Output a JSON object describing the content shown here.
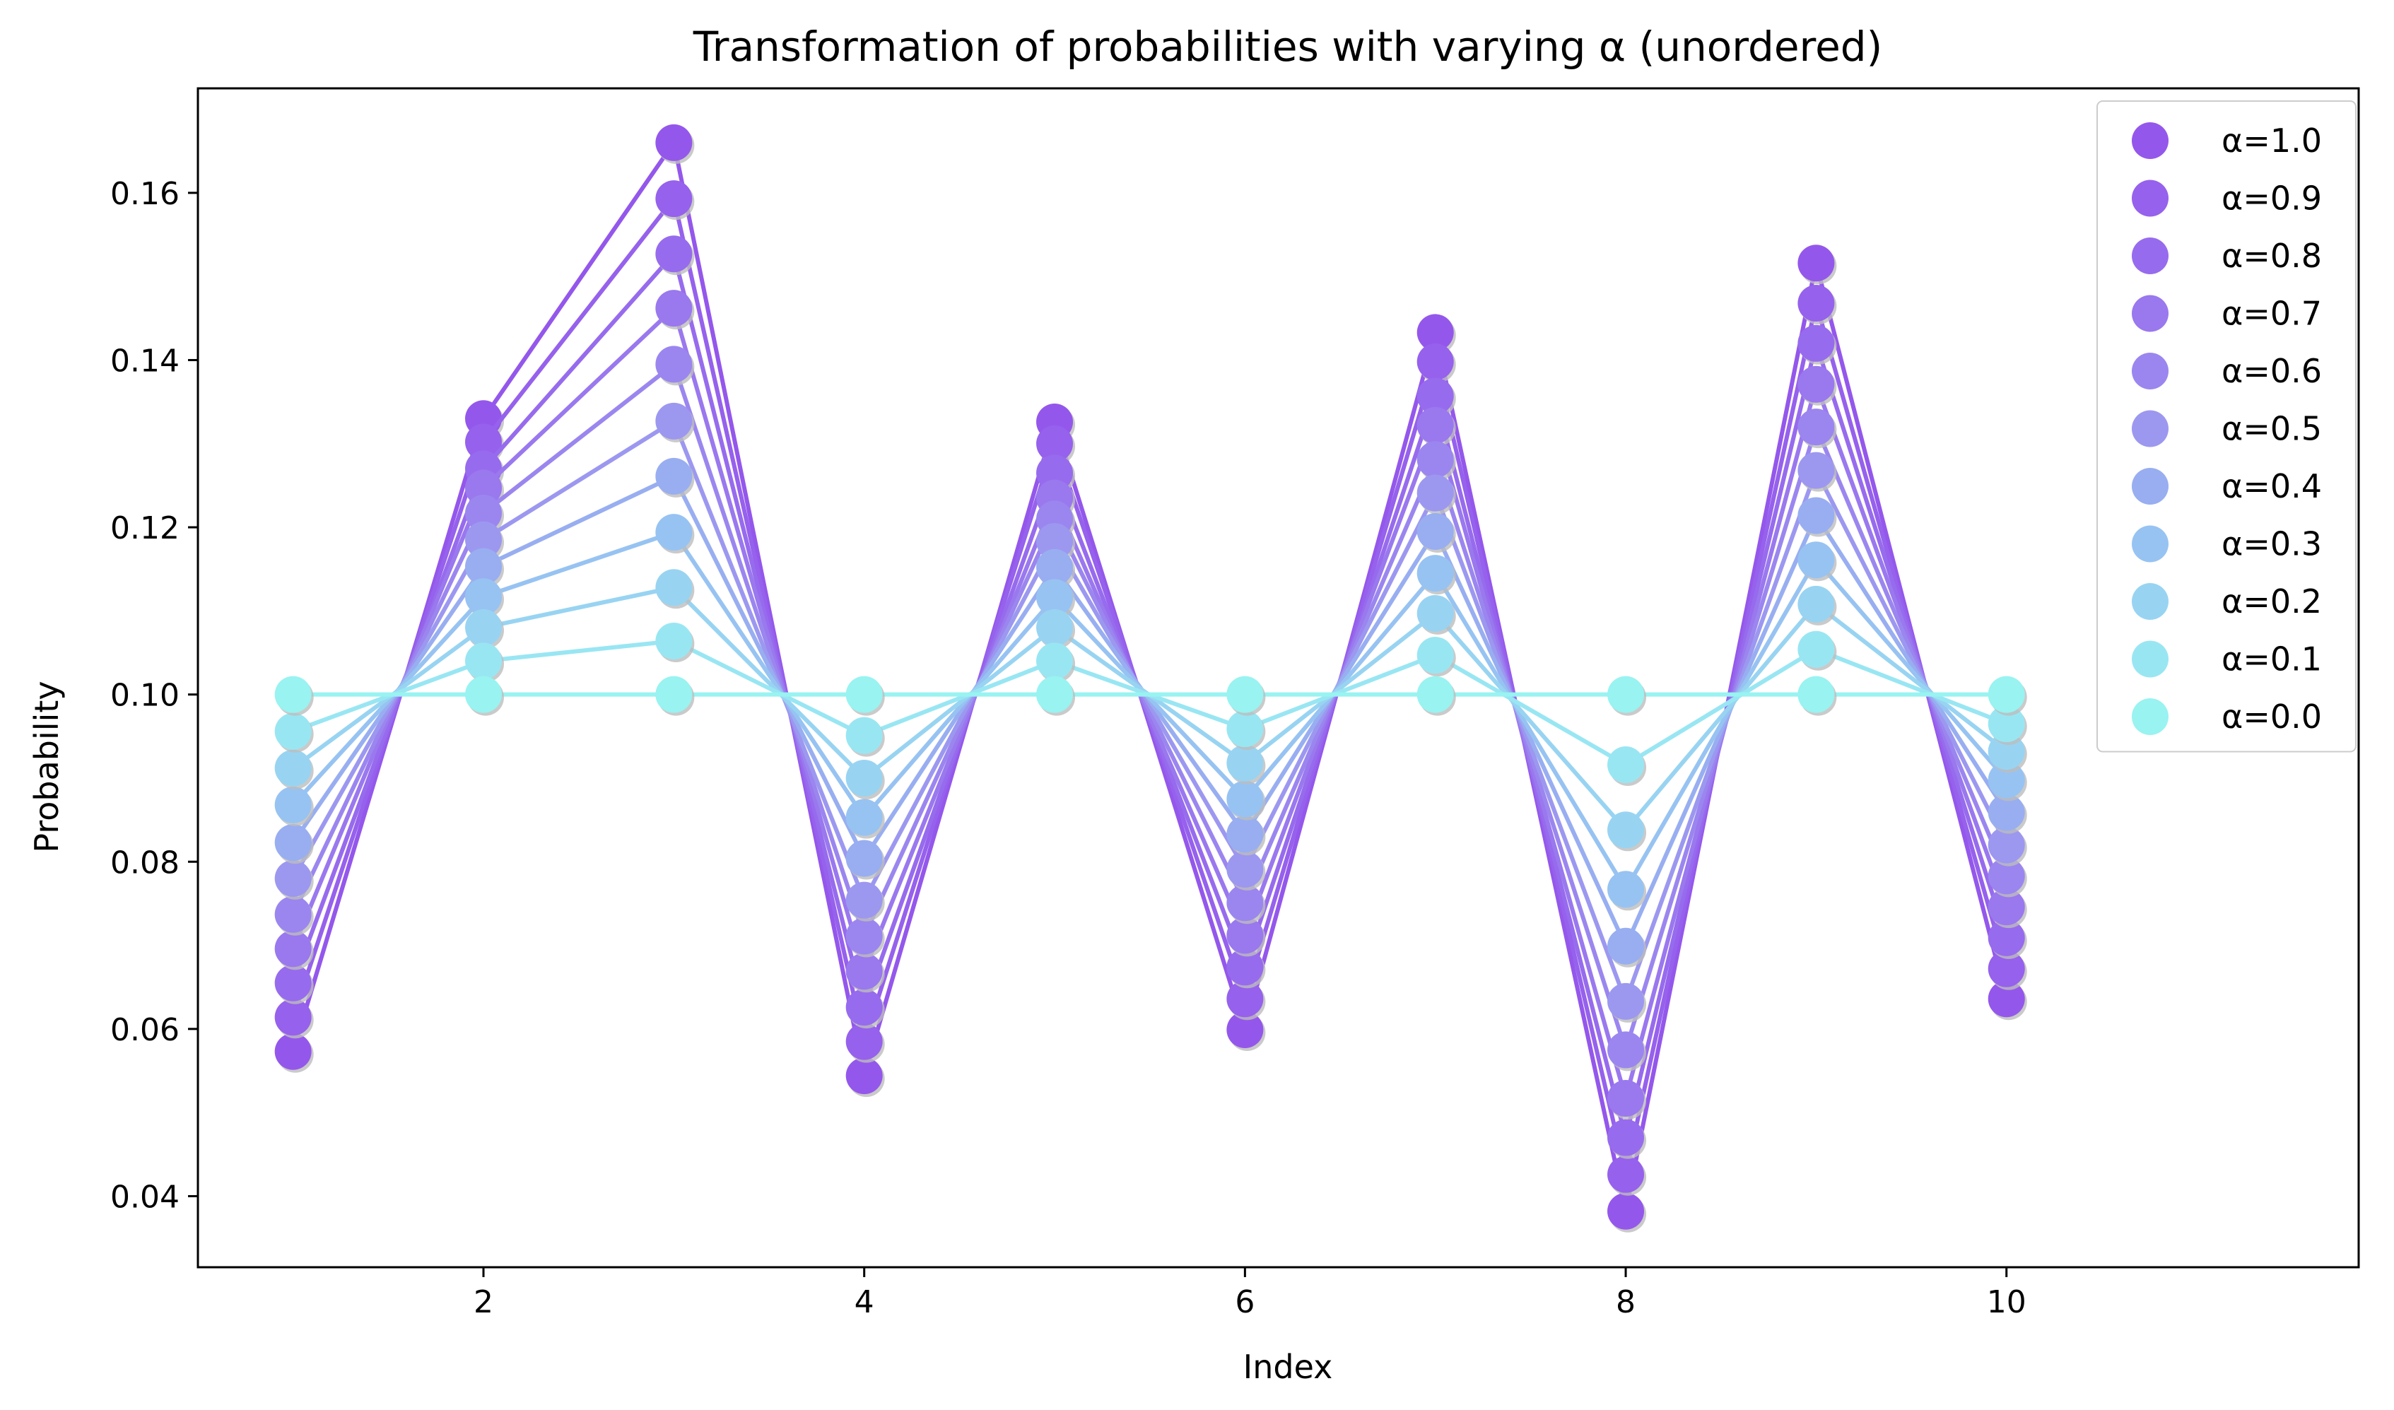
{
  "chart_data": {
    "type": "line",
    "title": "Transformation of probabilities with varying α (unordered)",
    "xlabel": "Index",
    "ylabel": "Probability",
    "xlim": [
      0.5,
      11.85
    ],
    "ylim": [
      0.0315,
      0.1725
    ],
    "xticks": [
      2,
      4,
      6,
      8,
      10
    ],
    "yticks": [
      0.04,
      0.06,
      0.08,
      0.1,
      0.12,
      0.14,
      0.16
    ],
    "ytick_labels": [
      "0.04",
      "0.06",
      "0.08",
      "0.10",
      "0.12",
      "0.14",
      "0.16"
    ],
    "xtick_labels": [
      "2",
      "4",
      "6",
      "8",
      "10"
    ],
    "grid": false,
    "legend_position": "top-right",
    "markers": true,
    "x": [
      1,
      2,
      3,
      4,
      5,
      6,
      7,
      8,
      9,
      10
    ],
    "series": [
      {
        "name": "α=1.0",
        "color": "#9457eb",
        "values": [
          0.0573,
          0.133,
          0.166,
          0.0544,
          0.1326,
          0.0599,
          0.1433,
          0.0382,
          0.1516,
          0.0636
        ]
      },
      {
        "name": "α=0.9",
        "color": "#9661ec",
        "values": [
          0.0614,
          0.1302,
          0.1593,
          0.0585,
          0.13,
          0.0636,
          0.1398,
          0.0426,
          0.1468,
          0.0672
        ]
      },
      {
        "name": "α=0.8",
        "color": "#976bed",
        "values": [
          0.0655,
          0.127,
          0.1527,
          0.0626,
          0.1265,
          0.0674,
          0.1357,
          0.047,
          0.142,
          0.0709
        ]
      },
      {
        "name": "α=0.7",
        "color": "#9a78ee",
        "values": [
          0.0696,
          0.1247,
          0.1462,
          0.0669,
          0.1235,
          0.0712,
          0.1322,
          0.0517,
          0.1371,
          0.0746
        ]
      },
      {
        "name": "α=0.6",
        "color": "#9b86ef",
        "values": [
          0.0737,
          0.1217,
          0.1395,
          0.0711,
          0.121,
          0.0751,
          0.1281,
          0.0575,
          0.132,
          0.0783
        ]
      },
      {
        "name": "α=0.5",
        "color": "#9c98f0",
        "values": [
          0.078,
          0.1185,
          0.1327,
          0.0754,
          0.1183,
          0.0791,
          0.1241,
          0.0633,
          0.1268,
          0.082
        ]
      },
      {
        "name": "α=0.4",
        "color": "#98aef1",
        "values": [
          0.0823,
          0.1153,
          0.1261,
          0.0804,
          0.1152,
          0.0833,
          0.1195,
          0.0699,
          0.1214,
          0.0859
        ]
      },
      {
        "name": "α=0.3",
        "color": "#97c3f2",
        "values": [
          0.0868,
          0.1117,
          0.1194,
          0.0853,
          0.1116,
          0.0875,
          0.1145,
          0.0767,
          0.1161,
          0.0898
        ]
      },
      {
        "name": "α=0.2",
        "color": "#98d4f2",
        "values": [
          0.0912,
          0.108,
          0.1128,
          0.09,
          0.108,
          0.0918,
          0.1097,
          0.0838,
          0.1108,
          0.0932
        ]
      },
      {
        "name": "α=0.1",
        "color": "#99e6f3",
        "values": [
          0.0956,
          0.104,
          0.1064,
          0.0951,
          0.104,
          0.0959,
          0.1047,
          0.0916,
          0.1054,
          0.0965
        ]
      },
      {
        "name": "α=0.0",
        "color": "#98f3f1",
        "values": [
          0.1,
          0.1,
          0.1,
          0.1,
          0.1,
          0.1,
          0.1,
          0.1,
          0.1,
          0.1
        ]
      }
    ]
  }
}
